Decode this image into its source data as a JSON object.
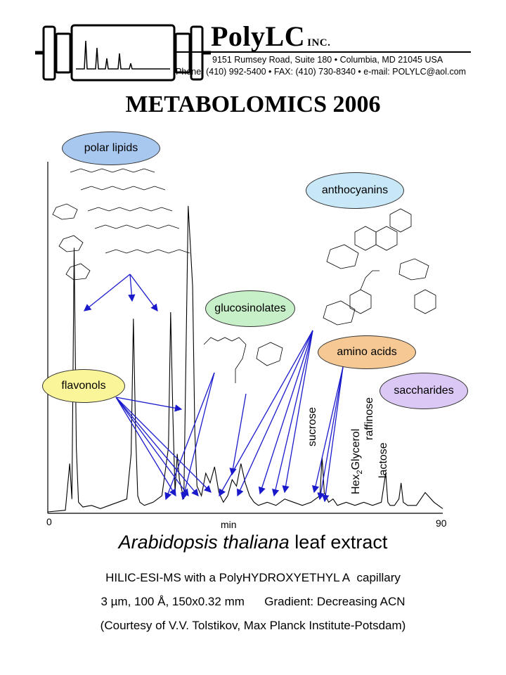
{
  "header": {
    "brand": "PolyLC",
    "brand_suffix": "INC.",
    "address": "9151 Rumsey Road, Suite 180 • Columbia, MD 21045 USA",
    "contact": "Phone: (410) 992-5400 • FAX: (410) 730-8340 • e-mail: POLYLC@aol.com"
  },
  "title": "METABOLOMICS 2006",
  "bubbles": {
    "polar_lipids": "polar lipids",
    "anthocyanins": "anthocyanins",
    "glucosinolates": "glucosinolates",
    "amino_acids": "amino acids",
    "flavonols": "flavonols",
    "saccharides": "saccharides"
  },
  "colors": {
    "polar_lipids": "#a9c8f0",
    "anthocyanins": "#c8e8f8",
    "glucosinolates": "#c8f0c8",
    "amino_acids": "#f5c894",
    "flavonols": "#fbf59a",
    "saccharides": "#dcc8f4",
    "arrow": "#1a1acc"
  },
  "chart_data": {
    "type": "line",
    "xlabel": "min",
    "x_tick_labels": [
      "0",
      "90"
    ],
    "xlim": [
      0,
      90
    ],
    "peak_labels": [
      "sucrose",
      "Hex2Glycerol",
      "raffinose",
      "lactose"
    ],
    "series": [
      {
        "x": [
          0,
          4,
          5,
          5.5,
          6,
          6.5,
          7,
          8,
          10,
          12,
          14,
          16,
          18,
          19,
          19.5,
          20,
          20.5,
          21,
          22,
          24,
          26,
          27.5,
          28,
          28.5,
          29,
          29.5,
          30,
          31,
          32,
          33,
          33.5,
          34,
          35,
          36,
          37,
          38,
          39,
          40,
          41,
          42,
          43,
          44,
          45,
          46,
          47,
          48,
          50,
          52,
          54,
          56,
          58,
          60,
          61,
          62,
          62.5,
          63,
          64,
          65,
          66,
          68,
          70,
          72,
          74,
          76,
          77,
          77.5,
          78,
          79,
          80,
          80.5,
          81,
          82,
          84,
          86,
          88,
          90
        ],
        "y": [
          0,
          0.5,
          15,
          4,
          82,
          20,
          3,
          1.5,
          2,
          1,
          2,
          3,
          4,
          18,
          60,
          25,
          5,
          3,
          2,
          3,
          5,
          20,
          62,
          30,
          6,
          18,
          10,
          4,
          95,
          70,
          25,
          8,
          5,
          12,
          9,
          14,
          6,
          3,
          5,
          10,
          8,
          15,
          9,
          5,
          3,
          2,
          3,
          2,
          4,
          3,
          2,
          3,
          4,
          5,
          17,
          6,
          3,
          4,
          2,
          3,
          2,
          3,
          2,
          3,
          12,
          3,
          2,
          2,
          4,
          9,
          3,
          2,
          2,
          6,
          3,
          1
        ]
      }
    ]
  }
}
